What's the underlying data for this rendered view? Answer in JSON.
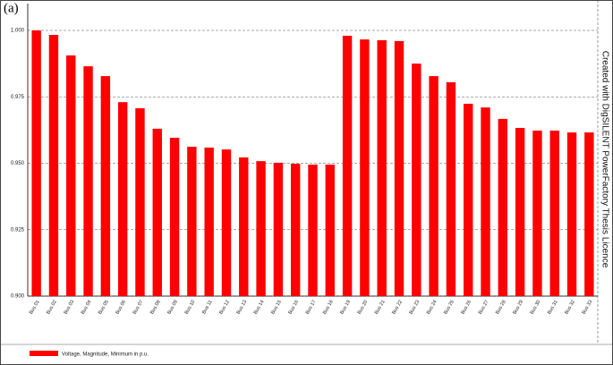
{
  "chart_data": {
    "type": "bar",
    "title": "(a)",
    "note": "Created with DigSILENT PowerFactory Thesis Licence",
    "categories": [
      "Bus 01",
      "Bus 02",
      "Bus 03",
      "Bus 04",
      "Bus 05",
      "Bus 06",
      "Bus 07",
      "Bus 08",
      "Bus 09",
      "Bus 10",
      "Bus 11",
      "Bus 12",
      "Bus 13",
      "Bus 14",
      "Bus 15",
      "Bus 16",
      "Bus 17",
      "Bus 18",
      "Bus 19",
      "Bus 20",
      "Bus 21",
      "Bus 22",
      "Bus 23",
      "Bus 24",
      "Bus 25",
      "Bus 26",
      "Bus 27",
      "Bus 28",
      "Bus 29",
      "Bus 30",
      "Bus 31",
      "Bus 32",
      "Bus 33"
    ],
    "series": [
      {
        "name": "Voltage, Magnitude, Minimum in p.u.",
        "color": "#ff0000",
        "values": [
          1.0,
          0.9983,
          0.9906,
          0.9865,
          0.9828,
          0.973,
          0.9707,
          0.963,
          0.9596,
          0.9562,
          0.9559,
          0.9552,
          0.9522,
          0.9508,
          0.9502,
          0.9498,
          0.9495,
          0.9495,
          0.998,
          0.9966,
          0.9963,
          0.996,
          0.9875,
          0.9828,
          0.9805,
          0.9724,
          0.971,
          0.9667,
          0.9633,
          0.9623,
          0.9623,
          0.9616,
          0.9616
        ]
      }
    ],
    "ylim": [
      0.9,
      1.0
    ],
    "yticks": [
      {
        "value": 0.9,
        "label": "0.900"
      },
      {
        "value": 0.925,
        "label": "0.925"
      },
      {
        "value": 0.95,
        "label": "0.950"
      },
      {
        "value": 0.975,
        "label": "0.975"
      },
      {
        "value": 1.0,
        "label": "1.000"
      }
    ],
    "grid": true
  }
}
